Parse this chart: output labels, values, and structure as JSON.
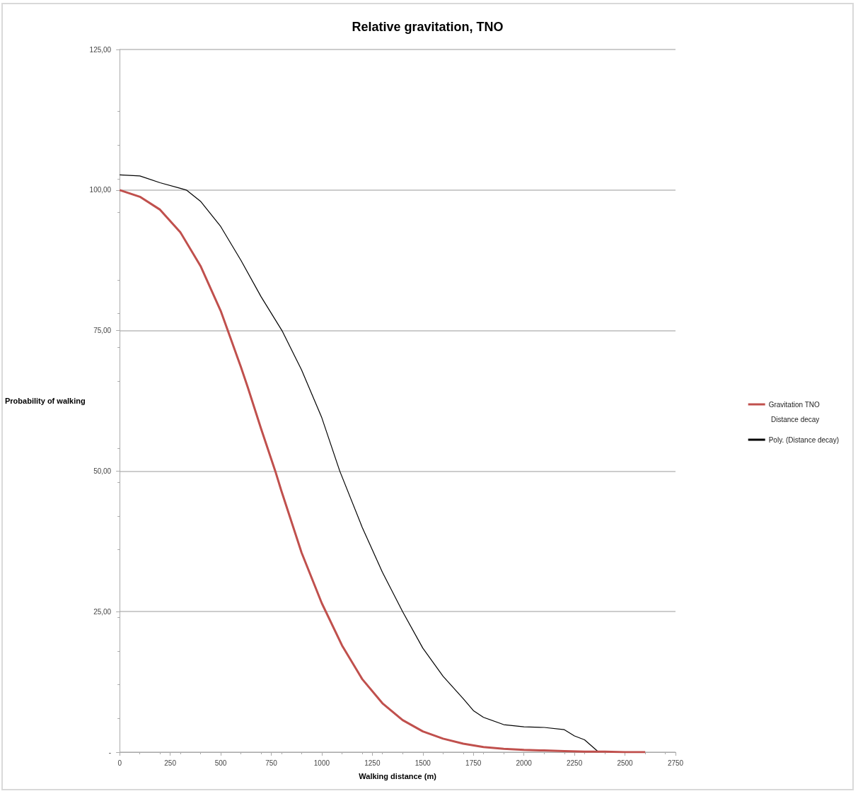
{
  "chart_data": {
    "type": "line",
    "title": "Relative gravitation, TNO",
    "xlabel": "Walking distance (m)",
    "ylabel": "Probability of walking",
    "xlim": [
      0,
      2750
    ],
    "xticks": [
      0,
      250,
      500,
      750,
      1000,
      1250,
      1500,
      1750,
      2000,
      2250,
      2500,
      2750
    ],
    "ylim": [
      0,
      125
    ],
    "yticks": [
      {
        "value": 0,
        "label": "-"
      },
      {
        "value": 25,
        "label": "25,00"
      },
      {
        "value": 50,
        "label": "50,00"
      },
      {
        "value": 75,
        "label": "75,00"
      },
      {
        "value": 100,
        "label": "100,00"
      },
      {
        "value": 125,
        "label": "125,00"
      }
    ],
    "grid": "y",
    "legend": "right",
    "marker": "none",
    "line_style": "solid",
    "annotations": [
      "Distance decay"
    ],
    "series": [
      {
        "name": "Gravitation TNO",
        "color": "#c0504d",
        "x": [
          0,
          100,
          200,
          300,
          400,
          500,
          535,
          600,
          634,
          700,
          770,
          800,
          900,
          1000,
          1100,
          1200,
          1300,
          1400,
          1500,
          1600,
          1700,
          1800,
          1900,
          2000,
          2100,
          2200,
          2300,
          2400,
          2500,
          2600
        ],
        "values": [
          100,
          98.8,
          96.5,
          92.5,
          86.5,
          78.5,
          75,
          68.5,
          64.9,
          57.5,
          50,
          46.5,
          35.5,
          26.5,
          19,
          13,
          8.7,
          5.7,
          3.7,
          2.4,
          1.5,
          0.9,
          0.6,
          0.4,
          0.3,
          0.2,
          0.1,
          0.1,
          0,
          0
        ]
      },
      {
        "name": "Poly. (Distance decay)",
        "color": "#000000",
        "x": [
          0,
          100,
          200,
          300,
          330,
          400,
          500,
          600,
          700,
          803,
          900,
          1000,
          1089,
          1200,
          1300,
          1400,
          1500,
          1600,
          1700,
          1750,
          1800,
          1900,
          2000,
          2100,
          2200,
          2250,
          2300,
          2370
        ],
        "values": [
          102.7,
          102.5,
          101.3,
          100.3,
          100,
          98,
          93.5,
          87.5,
          81,
          75,
          68,
          59.5,
          50,
          40,
          32,
          25,
          18.5,
          13.5,
          9.5,
          7.4,
          6.2,
          4.9,
          4.5,
          4.4,
          4,
          2.9,
          2.2,
          0
        ]
      }
    ]
  }
}
